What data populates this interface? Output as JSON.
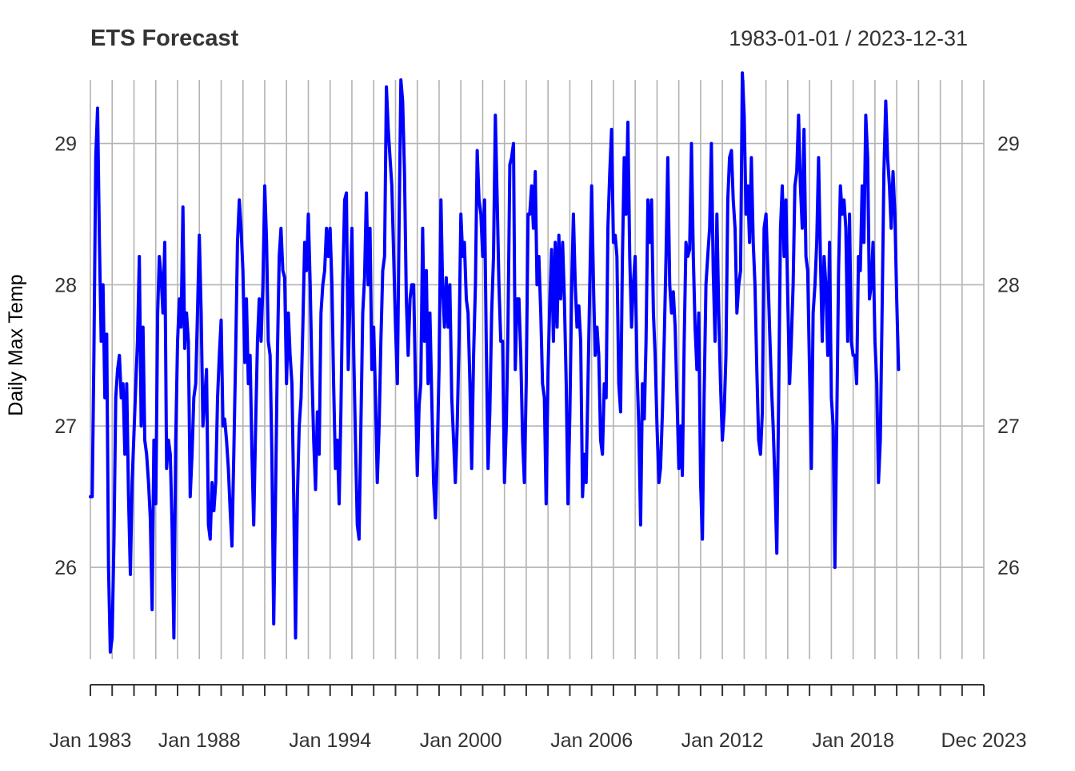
{
  "chart_data": {
    "type": "line",
    "title": "ETS Forecast",
    "date_range": "1983-01-01 / 2023-12-31",
    "xlabel": "",
    "ylabel": "Daily Max Temp",
    "x_ticks": [
      {
        "label": "Jan 1983",
        "date": "1983-01-01"
      },
      {
        "label": "Jan 1988",
        "date": "1988-01-01"
      },
      {
        "label": "Jan 1994",
        "date": "1994-01-01"
      },
      {
        "label": "Jan 2000",
        "date": "2000-01-01"
      },
      {
        "label": "Jan 2006",
        "date": "2006-01-01"
      },
      {
        "label": "Jan 2012",
        "date": "2012-01-01"
      },
      {
        "label": "Jan 2018",
        "date": "2018-01-01"
      },
      {
        "label": "Dec 2023",
        "date": "2023-12-01"
      }
    ],
    "y_ticks": [
      26,
      27,
      28,
      29
    ],
    "ylim": [
      25.35,
      29.45
    ],
    "xlim": [
      "1983-01-01",
      "2023-12-31"
    ],
    "grid": true,
    "line_color": "#0000ff",
    "series": [
      {
        "frequency": "monthly",
        "start": "1983-01",
        "values": [
          26.5,
          26.5,
          27.5,
          28.9,
          29.25,
          28.3,
          27.6,
          28.0,
          27.2,
          27.65,
          26.0,
          25.4,
          25.5,
          26.2,
          27.2,
          27.4,
          27.5,
          27.2,
          27.3,
          26.8,
          27.3,
          26.5,
          25.95,
          26.6,
          26.95,
          27.3,
          27.6,
          28.2,
          27.0,
          27.7,
          26.9,
          26.8,
          26.6,
          26.35,
          25.7,
          26.9,
          26.45,
          27.8,
          28.2,
          28.05,
          27.8,
          28.3,
          26.7,
          26.9,
          26.8,
          26.3,
          25.5,
          26.9,
          27.6,
          27.9,
          27.7,
          28.55,
          27.55,
          27.8,
          27.6,
          26.5,
          26.8,
          27.2,
          27.3,
          27.8,
          28.35,
          27.8,
          27.0,
          27.2,
          27.4,
          26.3,
          26.2,
          26.6,
          26.4,
          26.6,
          27.2,
          27.5,
          27.75,
          27.0,
          27.05,
          26.9,
          26.7,
          26.4,
          26.15,
          26.8,
          27.5,
          28.3,
          28.6,
          28.4,
          28.1,
          27.45,
          27.9,
          27.3,
          27.5,
          26.8,
          26.3,
          27.0,
          27.6,
          27.9,
          27.6,
          28.0,
          28.7,
          28.3,
          27.6,
          27.5,
          26.8,
          25.6,
          26.5,
          27.5,
          28.2,
          28.4,
          28.1,
          28.05,
          27.3,
          27.8,
          27.5,
          27.3,
          26.5,
          25.5,
          26.5,
          27.0,
          27.2,
          27.7,
          28.3,
          28.1,
          28.5,
          28.0,
          27.4,
          26.9,
          26.55,
          27.1,
          26.8,
          27.8,
          28.0,
          28.1,
          28.4,
          28.2,
          28.4,
          28.0,
          27.3,
          26.7,
          26.9,
          26.45,
          27.1,
          28.0,
          28.6,
          28.65,
          27.4,
          27.9,
          28.4,
          27.5,
          26.9,
          26.3,
          26.2,
          27.0,
          27.8,
          28.05,
          28.65,
          28.0,
          28.4,
          27.4,
          27.7,
          27.2,
          26.6,
          27.0,
          27.6,
          28.1,
          28.2,
          29.4,
          29.1,
          28.9,
          28.7,
          28.2,
          27.7,
          27.3,
          28.4,
          29.45,
          29.3,
          28.8,
          27.9,
          27.5,
          27.9,
          28.0,
          28.0,
          27.3,
          26.65,
          27.15,
          27.3,
          28.4,
          27.6,
          28.1,
          27.3,
          27.8,
          27.2,
          26.6,
          26.35,
          26.8,
          27.4,
          28.6,
          28.0,
          27.7,
          28.05,
          27.7,
          28.0,
          27.2,
          26.9,
          26.6,
          27.0,
          27.6,
          28.5,
          28.2,
          28.3,
          27.9,
          27.8,
          27.3,
          26.7,
          27.5,
          28.0,
          28.95,
          28.6,
          28.5,
          28.2,
          28.6,
          27.6,
          26.7,
          27.1,
          27.8,
          28.2,
          29.2,
          28.6,
          28.0,
          27.6,
          27.6,
          26.6,
          27.0,
          27.7,
          28.85,
          28.9,
          29.0,
          27.4,
          27.9,
          27.9,
          27.5,
          26.9,
          26.6,
          27.3,
          28.5,
          28.5,
          28.7,
          28.4,
          28.8,
          28.0,
          28.2,
          27.8,
          27.3,
          27.2,
          26.45,
          27.4,
          27.9,
          28.25,
          27.6,
          28.3,
          27.7,
          28.35,
          27.9,
          28.3,
          27.9,
          27.3,
          26.45,
          27.1,
          28.0,
          28.5,
          28.0,
          27.7,
          27.85,
          27.6,
          26.5,
          26.8,
          26.6,
          27.3,
          28.0,
          28.7,
          28.0,
          27.5,
          27.7,
          27.5,
          26.9,
          26.8,
          27.3,
          27.2,
          28.4,
          28.8,
          29.1,
          28.3,
          28.35,
          28.2,
          27.3,
          27.1,
          28.2,
          28.9,
          28.5,
          29.15,
          28.2,
          27.7,
          28.0,
          28.2,
          27.4,
          27.0,
          26.3,
          27.3,
          27.05,
          27.6,
          28.6,
          28.3,
          28.6,
          27.8,
          27.5,
          27.0,
          26.6,
          26.7,
          27.1,
          27.6,
          28.2,
          28.9,
          28.0,
          27.8,
          27.95,
          27.7,
          27.2,
          26.7,
          27.0,
          26.65,
          27.6,
          28.3,
          28.2,
          28.25,
          29.0,
          28.2,
          27.7,
          27.4,
          27.8,
          26.6,
          26.2,
          27.2,
          28.0,
          28.2,
          28.4,
          29.0,
          28.1,
          27.6,
          28.5,
          27.8,
          27.3,
          26.9,
          27.1,
          27.5,
          28.6,
          28.9,
          28.95,
          28.6,
          28.4,
          27.8,
          28.0,
          28.1,
          29.5,
          29.2,
          28.5,
          28.7,
          28.3,
          28.9,
          28.3,
          28.0,
          27.4,
          26.9,
          26.8,
          27.1,
          28.4,
          28.5,
          28.1,
          27.7,
          27.3,
          27.0,
          26.6,
          26.1,
          27.2,
          28.4,
          28.7,
          28.2,
          28.6,
          27.9,
          27.3,
          27.6,
          28.0,
          28.7,
          28.8,
          29.2,
          28.7,
          28.4,
          29.1,
          28.2,
          28.1,
          27.4,
          26.7,
          27.8,
          28.0,
          28.3,
          28.9,
          28.2,
          27.6,
          28.2,
          28.0,
          27.5,
          28.3,
          27.2,
          27.0,
          26.0,
          27.0,
          28.1,
          28.7,
          28.5,
          28.6,
          28.4,
          27.6,
          28.5,
          27.6,
          27.5,
          27.5,
          27.3,
          28.2,
          28.1,
          28.7,
          28.3,
          29.2,
          28.9,
          27.9,
          28.0,
          28.3,
          27.6,
          27.3,
          26.6,
          26.9,
          27.8,
          28.8,
          29.3,
          28.9,
          28.7,
          28.4,
          28.8,
          28.5,
          27.9,
          27.4
        ]
      }
    ]
  }
}
